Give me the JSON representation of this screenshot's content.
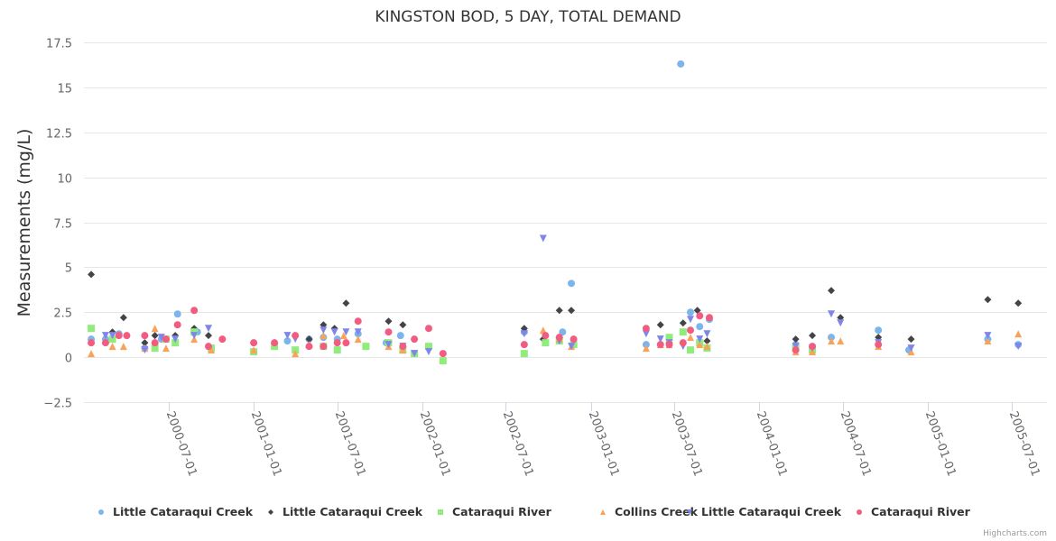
{
  "chart_data": {
    "type": "scatter",
    "title": "KINGSTON BOD, 5 DAY, TOTAL DEMAND",
    "xlabel": "",
    "ylabel": "Measurements (mg/L)",
    "ylim": [
      -2.5,
      17.5
    ],
    "yticks": [
      -2.5,
      0,
      2.5,
      5,
      7.5,
      10,
      12.5,
      15,
      17.5
    ],
    "ytick_labels": [
      "−2.5",
      "0",
      "2.5",
      "5",
      "7.5",
      "10",
      "12.5",
      "15",
      "17.5"
    ],
    "xlim": [
      "1999-12-15",
      "2005-08-10"
    ],
    "xticks": [
      "2000-07-01",
      "2001-01-01",
      "2001-07-01",
      "2002-01-01",
      "2002-07-01",
      "2003-01-01",
      "2003-07-01",
      "2004-01-01",
      "2004-07-01",
      "2005-01-01",
      "2005-07-01"
    ],
    "grid": true,
    "legend_position": "bottom",
    "credits": "Highcharts.com",
    "series": [
      {
        "name": "Little Cataraqui Creek",
        "marker": "circle",
        "color": "#7cb5ec",
        "points": [
          [
            "2000-01-15",
            1.0
          ],
          [
            "2000-02-15",
            1.0
          ],
          [
            "2000-03-15",
            1.3
          ],
          [
            "2000-05-10",
            0.5
          ],
          [
            "2000-06-15",
            1.0
          ],
          [
            "2000-07-20",
            2.4
          ],
          [
            "2000-09-01",
            1.4
          ],
          [
            "2001-03-15",
            0.9
          ],
          [
            "2001-05-01",
            1.0
          ],
          [
            "2001-06-01",
            1.1
          ],
          [
            "2001-07-01",
            1.0
          ],
          [
            "2001-08-15",
            1.3
          ],
          [
            "2001-10-15",
            0.8
          ],
          [
            "2001-11-15",
            1.2
          ],
          [
            "2002-08-10",
            1.4
          ],
          [
            "2002-11-01",
            1.4
          ],
          [
            "2002-11-20",
            4.1
          ],
          [
            "2003-05-01",
            0.7
          ],
          [
            "2003-08-05",
            2.5
          ],
          [
            "2003-07-15",
            16.3
          ],
          [
            "2003-08-25",
            1.7
          ],
          [
            "2003-09-15",
            2.1
          ],
          [
            "2004-03-20",
            0.7
          ],
          [
            "2004-06-05",
            1.1
          ],
          [
            "2004-09-15",
            1.5
          ],
          [
            "2004-11-20",
            0.4
          ],
          [
            "2005-05-10",
            1.0
          ],
          [
            "2005-07-15",
            0.7
          ]
        ]
      },
      {
        "name": "Little Cataraqui Creek",
        "marker": "diamond",
        "color": "#434348",
        "points": [
          [
            "2000-01-15",
            4.6
          ],
          [
            "2000-03-01",
            1.4
          ],
          [
            "2000-03-25",
            2.2
          ],
          [
            "2000-05-10",
            0.8
          ],
          [
            "2000-06-01",
            1.2
          ],
          [
            "2000-07-15",
            1.2
          ],
          [
            "2000-08-25",
            1.6
          ],
          [
            "2000-09-25",
            1.2
          ],
          [
            "2001-05-01",
            1.0
          ],
          [
            "2001-06-01",
            1.8
          ],
          [
            "2001-06-25",
            1.6
          ],
          [
            "2001-07-20",
            3.0
          ],
          [
            "2001-10-20",
            2.0
          ],
          [
            "2001-11-20",
            1.8
          ],
          [
            "2002-08-10",
            1.6
          ],
          [
            "2002-09-20",
            1.0
          ],
          [
            "2002-10-25",
            2.6
          ],
          [
            "2002-11-20",
            2.6
          ],
          [
            "2003-06-01",
            1.8
          ],
          [
            "2003-06-20",
            0.8
          ],
          [
            "2003-07-20",
            1.9
          ],
          [
            "2003-08-20",
            2.6
          ],
          [
            "2003-09-10",
            0.9
          ],
          [
            "2004-03-20",
            1.0
          ],
          [
            "2004-04-25",
            1.2
          ],
          [
            "2004-06-05",
            3.7
          ],
          [
            "2004-06-25",
            2.2
          ],
          [
            "2004-09-15",
            1.1
          ],
          [
            "2004-11-25",
            1.0
          ],
          [
            "2005-05-10",
            3.2
          ],
          [
            "2005-07-15",
            3.0
          ]
        ]
      },
      {
        "name": "Cataraqui River",
        "marker": "square",
        "color": "#90ed7d",
        "points": [
          [
            "2000-01-15",
            1.6
          ],
          [
            "2000-03-01",
            1.0
          ],
          [
            "2000-06-01",
            0.5
          ],
          [
            "2000-06-25",
            1.0
          ],
          [
            "2000-07-15",
            0.8
          ],
          [
            "2000-08-25",
            1.4
          ],
          [
            "2000-10-01",
            0.5
          ],
          [
            "2001-01-01",
            0.3
          ],
          [
            "2001-02-15",
            0.6
          ],
          [
            "2001-04-01",
            0.4
          ],
          [
            "2001-06-01",
            0.6
          ],
          [
            "2001-07-01",
            0.4
          ],
          [
            "2001-09-01",
            0.6
          ],
          [
            "2001-10-20",
            0.8
          ],
          [
            "2001-11-20",
            0.4
          ],
          [
            "2001-12-15",
            0.2
          ],
          [
            "2002-01-15",
            0.6
          ],
          [
            "2002-02-15",
            -0.2
          ],
          [
            "2002-08-10",
            0.2
          ],
          [
            "2002-09-25",
            0.8
          ],
          [
            "2002-10-25",
            0.9
          ],
          [
            "2002-11-25",
            0.7
          ],
          [
            "2003-06-20",
            1.1
          ],
          [
            "2003-07-20",
            1.4
          ],
          [
            "2003-08-05",
            0.4
          ],
          [
            "2003-08-25",
            0.8
          ],
          [
            "2003-09-10",
            0.5
          ],
          [
            "2004-03-20",
            0.5
          ],
          [
            "2004-04-25",
            0.4
          ]
        ]
      },
      {
        "name": "Collins Creek",
        "marker": "triangle",
        "color": "#f7a35c",
        "points": [
          [
            "2000-01-15",
            0.2
          ],
          [
            "2000-03-01",
            0.6
          ],
          [
            "2000-03-25",
            0.6
          ],
          [
            "2000-05-10",
            0.5
          ],
          [
            "2000-06-01",
            1.6
          ],
          [
            "2000-06-25",
            0.5
          ],
          [
            "2000-08-25",
            1.0
          ],
          [
            "2000-10-01",
            0.4
          ],
          [
            "2001-01-01",
            0.4
          ],
          [
            "2001-04-01",
            0.2
          ],
          [
            "2001-05-01",
            0.7
          ],
          [
            "2001-06-01",
            1.2
          ],
          [
            "2001-07-15",
            1.2
          ],
          [
            "2001-08-15",
            1.0
          ],
          [
            "2001-10-20",
            0.6
          ],
          [
            "2001-11-20",
            0.4
          ],
          [
            "2002-09-20",
            1.5
          ],
          [
            "2002-10-25",
            1.0
          ],
          [
            "2002-11-20",
            0.6
          ],
          [
            "2003-05-01",
            0.5
          ],
          [
            "2003-06-01",
            0.7
          ],
          [
            "2003-06-20",
            0.7
          ],
          [
            "2003-08-05",
            1.1
          ],
          [
            "2003-08-25",
            0.7
          ],
          [
            "2003-09-10",
            0.6
          ],
          [
            "2004-03-20",
            0.3
          ],
          [
            "2004-04-25",
            0.3
          ],
          [
            "2004-06-05",
            0.9
          ],
          [
            "2004-06-25",
            0.9
          ],
          [
            "2004-09-15",
            0.6
          ],
          [
            "2004-11-25",
            0.3
          ],
          [
            "2005-05-10",
            0.9
          ],
          [
            "2005-07-15",
            1.3
          ]
        ]
      },
      {
        "name": "Little Cataraqui Creek",
        "marker": "triangle-down",
        "color": "#8085e9",
        "points": [
          [
            "2000-02-15",
            1.2
          ],
          [
            "2000-03-01",
            1.2
          ],
          [
            "2000-05-10",
            0.4
          ],
          [
            "2000-06-15",
            1.1
          ],
          [
            "2000-07-15",
            1.0
          ],
          [
            "2000-08-25",
            1.2
          ],
          [
            "2000-09-25",
            1.6
          ],
          [
            "2001-03-15",
            1.2
          ],
          [
            "2001-04-01",
            1.0
          ],
          [
            "2001-06-01",
            1.5
          ],
          [
            "2001-06-25",
            1.4
          ],
          [
            "2001-07-20",
            1.4
          ],
          [
            "2001-08-15",
            1.4
          ],
          [
            "2001-10-20",
            0.7
          ],
          [
            "2001-11-20",
            0.6
          ],
          [
            "2001-12-15",
            0.2
          ],
          [
            "2002-01-15",
            0.3
          ],
          [
            "2002-08-10",
            1.3
          ],
          [
            "2002-09-20",
            6.6
          ],
          [
            "2002-10-25",
            0.9
          ],
          [
            "2002-11-20",
            0.6
          ],
          [
            "2003-05-01",
            1.3
          ],
          [
            "2003-06-01",
            1.0
          ],
          [
            "2003-06-20",
            0.8
          ],
          [
            "2003-07-20",
            0.6
          ],
          [
            "2003-08-05",
            2.1
          ],
          [
            "2003-08-25",
            1.0
          ],
          [
            "2003-09-10",
            1.3
          ],
          [
            "2004-03-20",
            0.6
          ],
          [
            "2004-04-25",
            0.5
          ],
          [
            "2004-06-05",
            2.4
          ],
          [
            "2004-06-25",
            1.9
          ],
          [
            "2004-09-15",
            0.8
          ],
          [
            "2004-11-25",
            0.5
          ],
          [
            "2005-05-10",
            1.2
          ],
          [
            "2005-07-15",
            0.6
          ]
        ]
      },
      {
        "name": "Cataraqui River",
        "marker": "circle",
        "color": "#f15c80",
        "points": [
          [
            "2000-01-15",
            0.8
          ],
          [
            "2000-02-15",
            0.8
          ],
          [
            "2000-03-15",
            1.2
          ],
          [
            "2000-04-01",
            1.2
          ],
          [
            "2000-05-10",
            1.2
          ],
          [
            "2000-06-01",
            0.8
          ],
          [
            "2000-06-25",
            1.0
          ],
          [
            "2000-07-20",
            1.8
          ],
          [
            "2000-08-25",
            2.6
          ],
          [
            "2000-09-25",
            0.6
          ],
          [
            "2000-10-25",
            1.0
          ],
          [
            "2001-01-01",
            0.8
          ],
          [
            "2001-02-15",
            0.8
          ],
          [
            "2001-04-01",
            1.2
          ],
          [
            "2001-05-01",
            0.6
          ],
          [
            "2001-06-01",
            0.6
          ],
          [
            "2001-07-01",
            0.8
          ],
          [
            "2001-07-20",
            0.8
          ],
          [
            "2001-08-15",
            2.0
          ],
          [
            "2001-10-20",
            1.4
          ],
          [
            "2001-11-20",
            0.6
          ],
          [
            "2001-12-15",
            1.0
          ],
          [
            "2002-01-15",
            1.6
          ],
          [
            "2002-02-15",
            0.2
          ],
          [
            "2002-08-10",
            0.7
          ],
          [
            "2002-09-25",
            1.2
          ],
          [
            "2002-10-25",
            1.1
          ],
          [
            "2002-11-25",
            1.0
          ],
          [
            "2003-05-01",
            1.6
          ],
          [
            "2003-06-01",
            0.7
          ],
          [
            "2003-06-20",
            0.7
          ],
          [
            "2003-07-20",
            0.8
          ],
          [
            "2003-08-05",
            1.5
          ],
          [
            "2003-08-25",
            2.3
          ],
          [
            "2003-09-15",
            2.2
          ],
          [
            "2004-03-20",
            0.4
          ],
          [
            "2004-04-25",
            0.6
          ],
          [
            "2004-09-15",
            0.7
          ]
        ]
      }
    ]
  }
}
